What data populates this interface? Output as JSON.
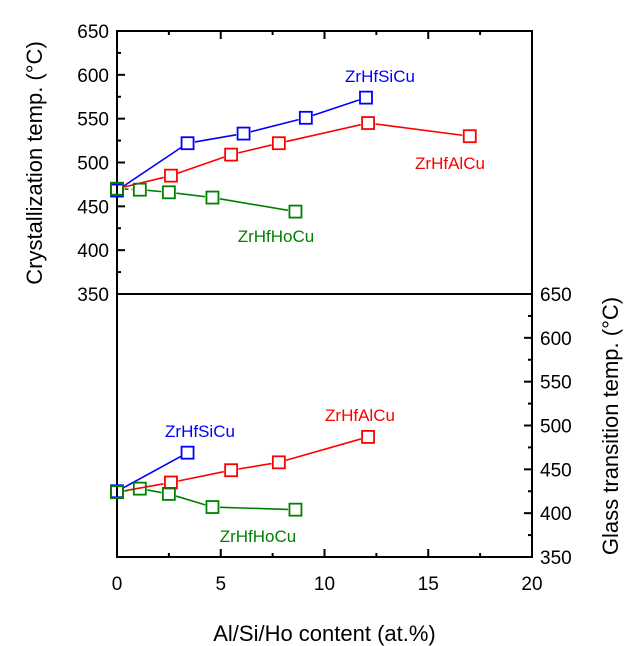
{
  "chart_data": [
    {
      "type": "line",
      "panel": "top",
      "ylabel": "Crystallization temp. (°C)",
      "xlabel": "Al/Si/Ho content (at.%)",
      "xlim": [
        0,
        20
      ],
      "ylim": [
        350,
        650
      ],
      "xticks": [
        "0",
        "5",
        "10",
        "15",
        "20"
      ],
      "yticks": [
        "350",
        "400",
        "450",
        "500",
        "550",
        "600",
        "650"
      ],
      "y_axis_side": "left",
      "grid": false,
      "series": [
        {
          "name": "ZrHfSiCu",
          "color": "#0000ff",
          "marker": "open-square",
          "x": [
            0,
            3.4,
            6.1,
            9.1,
            12.0
          ],
          "y": [
            468,
            522,
            533,
            551,
            574
          ]
        },
        {
          "name": "ZrHfAlCu",
          "color": "#ff0000",
          "marker": "open-square",
          "x": [
            0,
            2.6,
            5.5,
            7.8,
            12.1,
            17.0
          ],
          "y": [
            470,
            485,
            509,
            522,
            545,
            530
          ]
        },
        {
          "name": "ZrHfHoCu",
          "color": "#008000",
          "marker": "open-square",
          "x": [
            0,
            1.1,
            2.5,
            4.6,
            8.6
          ],
          "y": [
            470,
            469,
            466,
            460,
            444
          ]
        }
      ]
    },
    {
      "type": "line",
      "panel": "bottom",
      "ylabel": "Glass transition temp. (°C)",
      "xlabel": "Al/Si/Ho content (at.%)",
      "xlim": [
        0,
        20
      ],
      "ylim": [
        350,
        650
      ],
      "xticks": [
        "0",
        "5",
        "10",
        "15",
        "20"
      ],
      "yticks": [
        "350",
        "400",
        "450",
        "500",
        "550",
        "600",
        "650"
      ],
      "y_axis_side": "right",
      "grid": false,
      "series": [
        {
          "name": "ZrHfSiCu",
          "color": "#0000ff",
          "marker": "open-square",
          "x": [
            0,
            3.4
          ],
          "y": [
            425,
            469
          ]
        },
        {
          "name": "ZrHfAlCu",
          "color": "#ff0000",
          "marker": "open-square",
          "x": [
            0,
            2.6,
            5.5,
            7.8,
            12.1
          ],
          "y": [
            424,
            435,
            449,
            458,
            487
          ]
        },
        {
          "name": "ZrHfHoCu",
          "color": "#008000",
          "marker": "open-square",
          "x": [
            0,
            1.1,
            2.5,
            4.6,
            8.6
          ],
          "y": [
            424,
            428,
            422,
            407,
            404
          ]
        }
      ]
    }
  ]
}
